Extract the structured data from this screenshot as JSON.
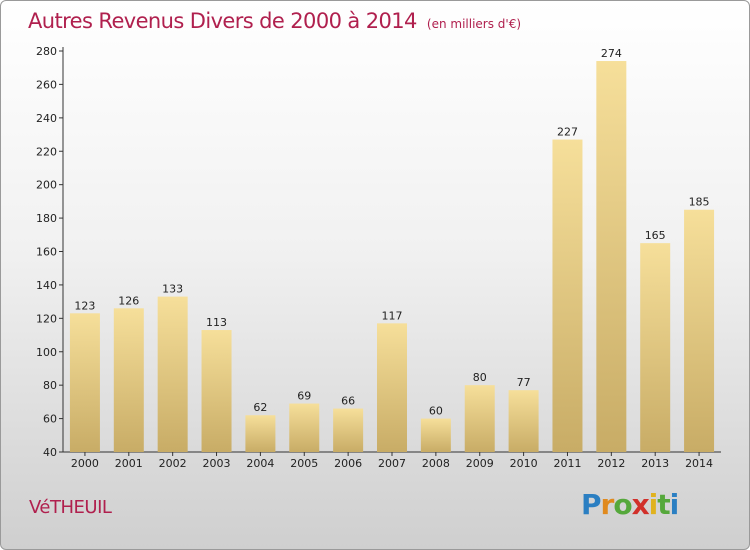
{
  "title": "Autres Revenus Divers de 2000 à 2014",
  "subtitle": "(en milliers d'€)",
  "commune": "VéTHEUIL",
  "logo": {
    "letters": [
      "P",
      "r",
      "o",
      "x",
      "i",
      "t",
      "i"
    ],
    "colors": [
      "#2b7fc2",
      "#e08a1e",
      "#55a83b",
      "#d1302a",
      "#e0b21e",
      "#55a83b",
      "#2b7fc2"
    ]
  },
  "colors": {
    "bar_light": "#f6df9a",
    "bar_dark": "#c8ac66",
    "accent": "#b0204e"
  },
  "chart_data": {
    "type": "bar",
    "title": "Autres Revenus Divers de 2000 à 2014",
    "categories": [
      "2000",
      "2001",
      "2002",
      "2003",
      "2004",
      "2005",
      "2006",
      "2007",
      "2008",
      "2009",
      "2010",
      "2011",
      "2012",
      "2013",
      "2014"
    ],
    "values": [
      123,
      126,
      133,
      113,
      62,
      69,
      66,
      117,
      60,
      80,
      77,
      227,
      274,
      165,
      185
    ],
    "ylim": [
      40,
      280
    ],
    "yticks": [
      40,
      60,
      80,
      100,
      120,
      140,
      160,
      180,
      200,
      220,
      240,
      260,
      280
    ],
    "grid": false,
    "legend": "none"
  }
}
